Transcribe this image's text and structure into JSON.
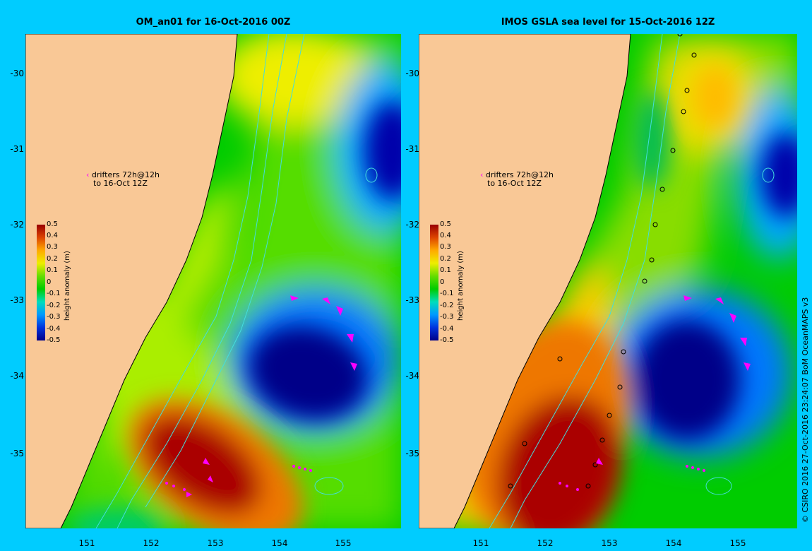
{
  "titles": {
    "left": "OM_an01 for 16-Oct-2016 00Z",
    "right": "IMOS GSLA sea level  for 15-Oct-2016 12Z"
  },
  "axes": {
    "y_labels": [
      "-30",
      "-31",
      "-32",
      "-33",
      "-34",
      "-35"
    ],
    "x_labels": [
      "151",
      "152",
      "153",
      "154",
      "155"
    ]
  },
  "legend": {
    "drifters_line1": "drifters 72h@12h",
    "drifters_line2": "to 16-Oct 12Z",
    "colorbar_title": "height anomaly (m)",
    "colorbar_ticks": [
      "0.5",
      "0.4",
      "0.3",
      "0.2",
      "0.1",
      "0",
      "-0.1",
      "-0.2",
      "-0.3",
      "-0.4",
      "-0.5"
    ]
  },
  "credit": "© CSIRO 2016  27-Oct-2016 23:24:07 BoM OceanMAPS v3",
  "colors": {
    "background": "#00ccff",
    "land": "#f9c896",
    "drifter": "#ff00ff",
    "contour": "#44dddd"
  }
}
